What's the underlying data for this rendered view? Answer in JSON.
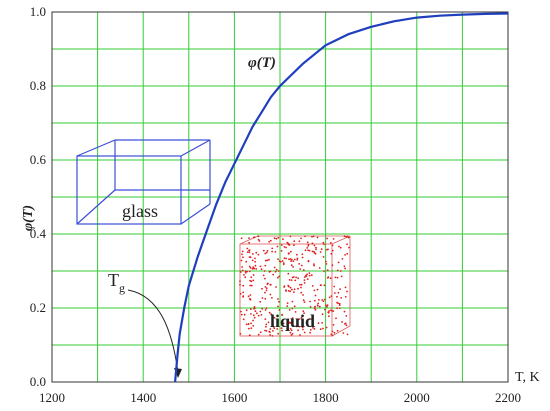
{
  "chart_data": {
    "type": "line",
    "title": "",
    "xlabel": "T, K",
    "ylabel": "φ(T)",
    "xlim": [
      1200,
      2200
    ],
    "ylim": [
      0.0,
      1.0
    ],
    "xticks": [
      1200,
      1400,
      1600,
      1800,
      2000,
      2200
    ],
    "yticks": [
      "0.0",
      "0.2",
      "0.4",
      "0.6",
      "0.8",
      "1.0"
    ],
    "grid": true,
    "grid_color": "#33cc33",
    "series": [
      {
        "name": "φ(T)",
        "color": "#1f3fbf",
        "x": [
          1470,
          1475,
          1480,
          1490,
          1500,
          1520,
          1540,
          1560,
          1580,
          1600,
          1620,
          1640,
          1660,
          1680,
          1700,
          1750,
          1800,
          1850,
          1900,
          1950,
          2000,
          2050,
          2100,
          2150,
          2200
        ],
        "y": [
          0.0,
          0.07,
          0.13,
          0.2,
          0.26,
          0.34,
          0.41,
          0.48,
          0.54,
          0.59,
          0.64,
          0.69,
          0.73,
          0.77,
          0.8,
          0.86,
          0.91,
          0.94,
          0.96,
          0.975,
          0.985,
          0.99,
          0.993,
          0.995,
          0.996
        ]
      }
    ],
    "annotations": {
      "curve_label": "φ(T)",
      "tg_label": "T",
      "tg_subscript": "g",
      "tg_value": 1470,
      "glass_label": "glass",
      "liquid_label": "liquid"
    }
  }
}
